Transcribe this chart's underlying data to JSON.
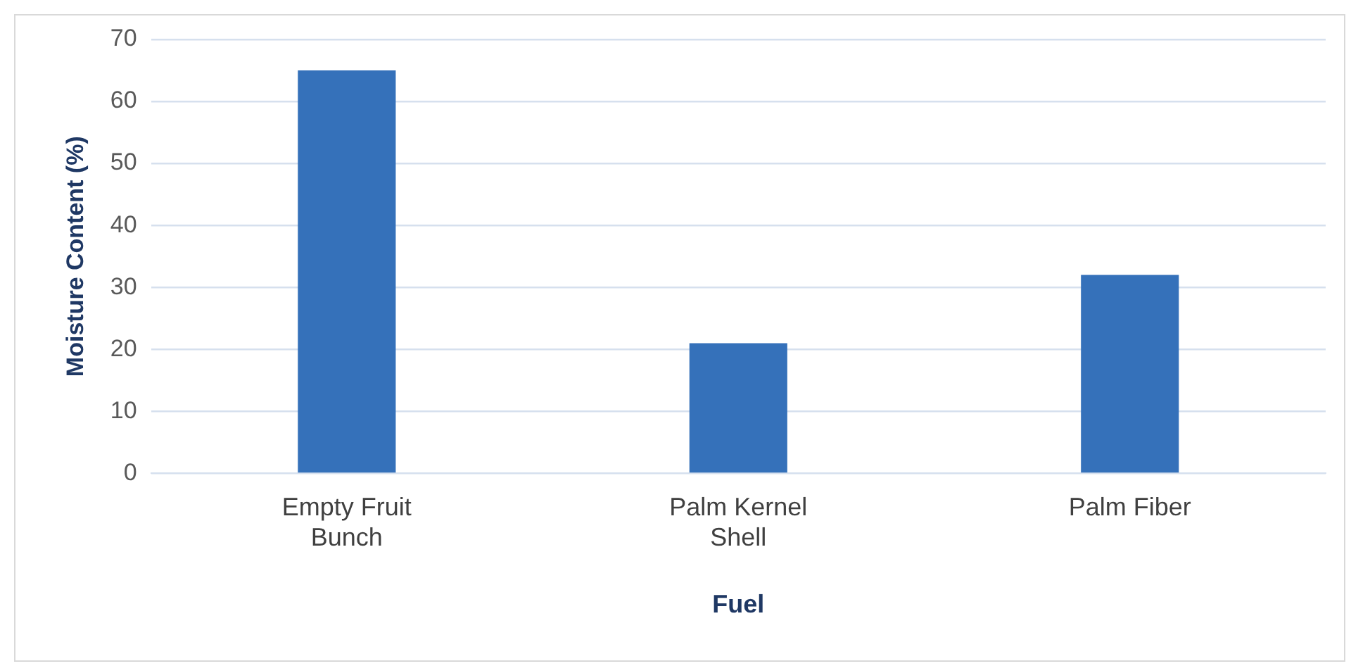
{
  "chart_data": {
    "type": "bar",
    "xlabel": "Fuel",
    "ylabel": "Moisture Content (%)",
    "categories": [
      "Empty Fruit Bunch",
      "Palm Kernel Shell",
      "Palm Fiber"
    ],
    "values": [
      65,
      21,
      32
    ],
    "color": "#3571ba",
    "ylim": [
      0,
      70
    ],
    "yticks": [
      0,
      10,
      20,
      30,
      40,
      50,
      60,
      70
    ],
    "grid": "y",
    "legend": false
  }
}
